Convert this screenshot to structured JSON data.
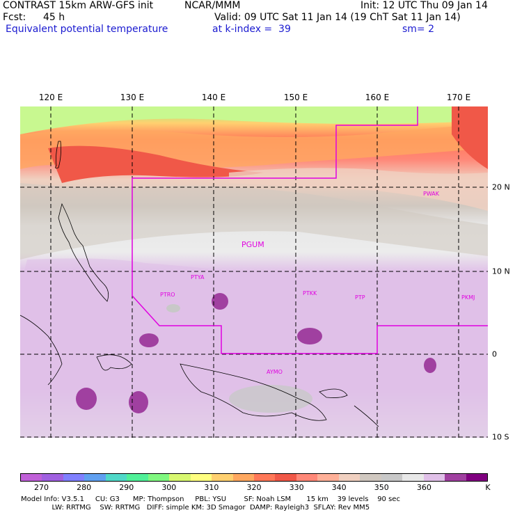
{
  "header": {
    "model_line": "CONTRAST 15km ARW-GFS init",
    "org": "NCAR/MMM",
    "init": "Init: 12 UTC Thu 09 Jan 14",
    "fcst_label": "Fcst:",
    "fcst_value": "45 h",
    "valid": "Valid: 09 UTC Sat 11 Jan 14 (19 ChT Sat 11 Jan 14)",
    "field": "Equivalent potential temperature",
    "level": "at k-index =  39",
    "smooth": "sm= 2"
  },
  "axes": {
    "lon_ticks": [
      "120 E",
      "130 E",
      "140 E",
      "150 E",
      "160 E",
      "170 E"
    ],
    "lat_ticks": [
      "20 N",
      "10 N",
      "0",
      "10 S"
    ]
  },
  "stations": [
    {
      "id": "PWAK",
      "label": "PWAK"
    },
    {
      "id": "PGUM",
      "label": "PGUM"
    },
    {
      "id": "PTYA",
      "label": "PTYA"
    },
    {
      "id": "PTRO",
      "label": "PTRO"
    },
    {
      "id": "PTKK",
      "label": "PTKK"
    },
    {
      "id": "PTPN",
      "label": "PTP"
    },
    {
      "id": "PKMJ",
      "label": "PKMJ"
    },
    {
      "id": "AYMO",
      "label": "AYMO"
    }
  ],
  "colorbar": {
    "colors": [
      "#c060d8",
      "#a060e0",
      "#8080ff",
      "#60a0f0",
      "#50d8c8",
      "#50f098",
      "#80f880",
      "#d8f870",
      "#ffff80",
      "#ffd070",
      "#ffa860",
      "#ff7858",
      "#f05848",
      "#ff8878",
      "#ffb098",
      "#f0d0c0",
      "#d0c8c0",
      "#c8c8c8",
      "#e8e8e8",
      "#e0c0e8",
      "#a040a0",
      "#800080"
    ],
    "labels": [
      "270",
      "280",
      "290",
      "300",
      "310",
      "320",
      "330",
      "340",
      "350",
      "360"
    ],
    "unit": "K"
  },
  "footer": {
    "line1": "Model Info: V3.5.1     CU: G3      MP: Thompson     PBL: YSU        SF: Noah LSM       15 km    39 levels    90 sec",
    "line2": "              LW: RRTMG    SW: RRTMG   DIFF: simple KM: 3D Smagor  DAMP: Rayleigh3  SFLAY: Rev MM5"
  }
}
